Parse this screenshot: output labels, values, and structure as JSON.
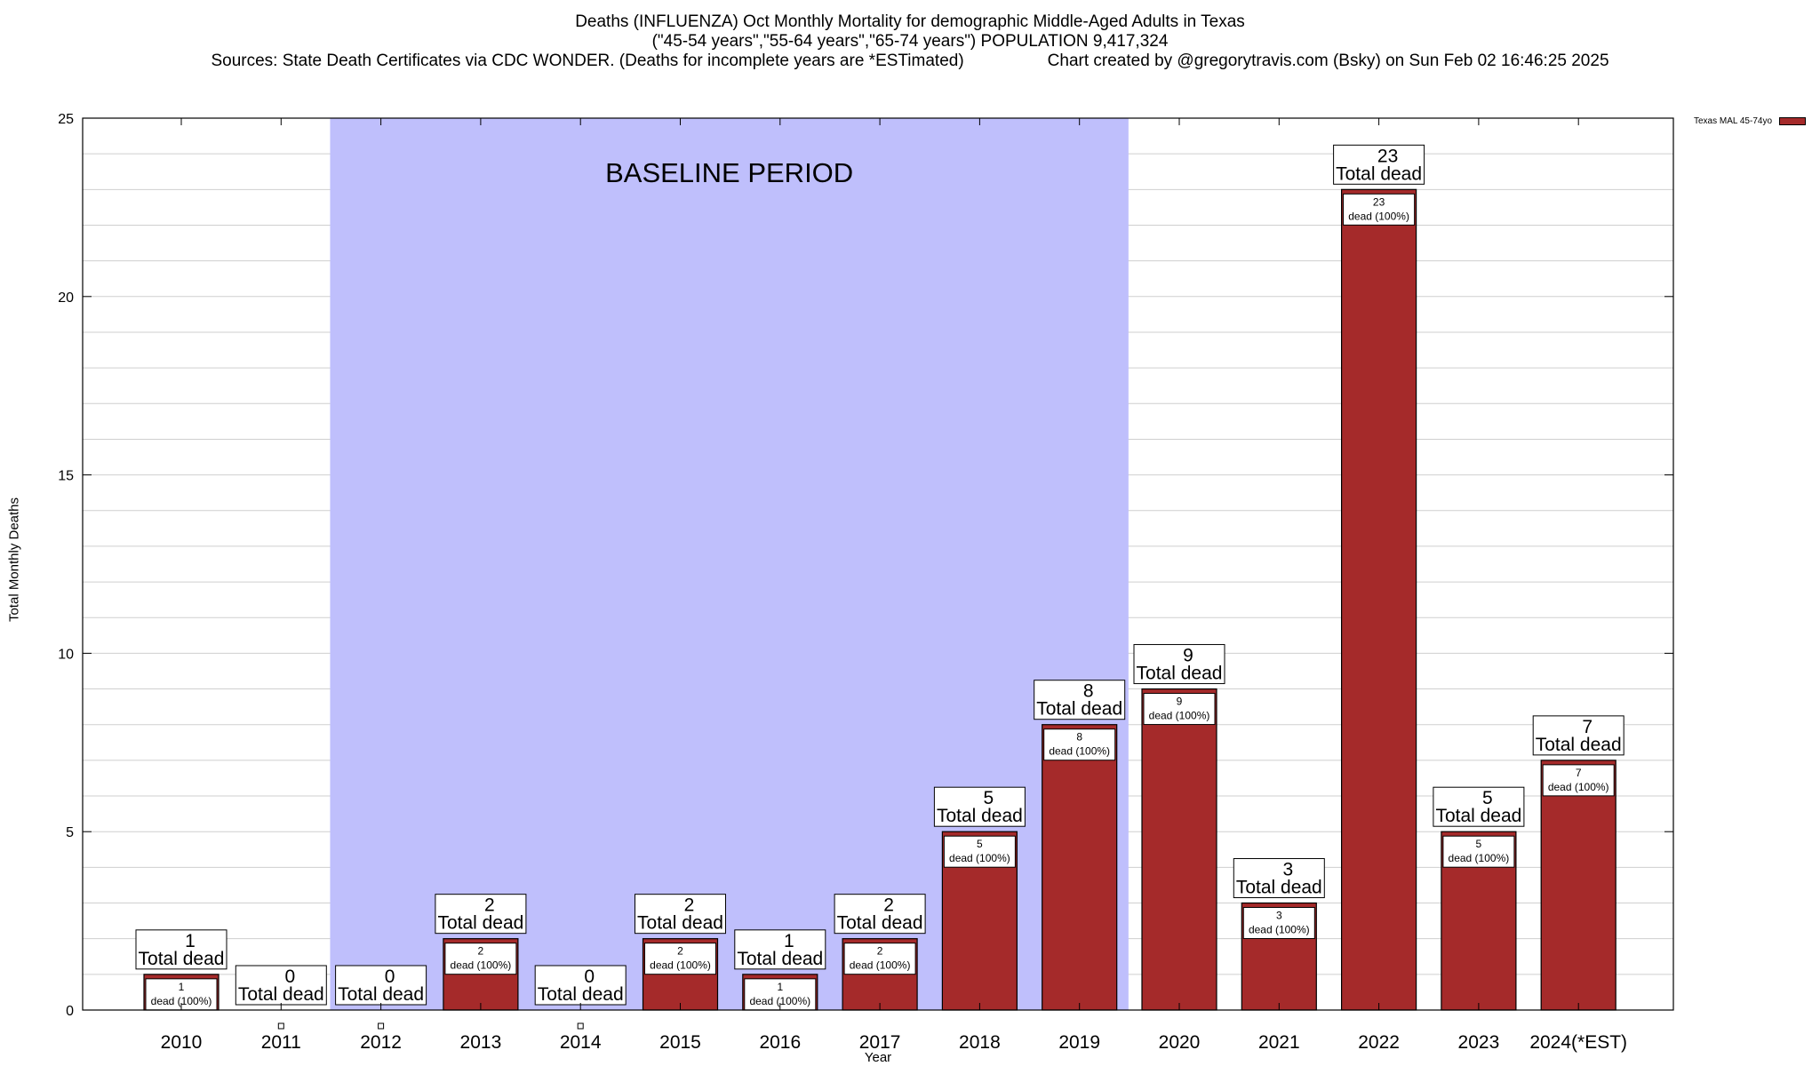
{
  "header": {
    "title_line1": "Deaths (INFLUENZA) Oct Monthly Mortality for demographic Middle-Aged Adults in Texas",
    "title_line2": "(\"45-54 years\",\"55-64 years\",\"65-74 years\") POPULATION 9,417,324",
    "sources": "Sources: State Death Certificates via CDC WONDER. (Deaths for incomplete years are *ESTimated)",
    "credit": "Chart created by @gregorytravis.com (Bsky) on Sun Feb 02 16:46:25 2025"
  },
  "chart_data": {
    "type": "bar",
    "title": "Deaths (INFLUENZA) Oct Monthly Mortality for demographic Middle-Aged Adults in Texas",
    "xlabel": "Year",
    "ylabel": "Total Monthly Deaths",
    "ylim": [
      0,
      25
    ],
    "yticks": [
      0,
      5,
      10,
      15,
      20,
      25
    ],
    "grid": true,
    "legend_position": "top-right",
    "categories": [
      "2010",
      "2011",
      "2012",
      "2013",
      "2014",
      "2015",
      "2016",
      "2017",
      "2018",
      "2019",
      "2020",
      "2021",
      "2022",
      "2023",
      "2024(*EST)"
    ],
    "series": [
      {
        "name": "Texas MAL 45-74yo",
        "color": "#a52a2a",
        "values": [
          1,
          0,
          0,
          2,
          0,
          2,
          1,
          2,
          5,
          8,
          9,
          3,
          23,
          5,
          7
        ]
      }
    ],
    "total_label": "Total dead",
    "inner_label": "dead (100%)",
    "shaded_region": {
      "label": "BASELINE PERIOD",
      "from_category": "2012",
      "to_category": "2019",
      "color": "#bfbffc"
    }
  }
}
